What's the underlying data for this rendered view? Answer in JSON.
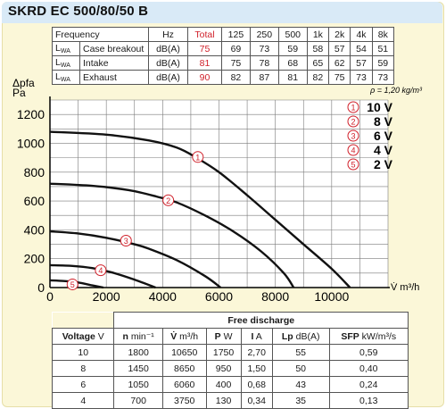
{
  "title": "SKRD EC 500/80/50 B",
  "sound_table": {
    "freq_label": "Frequency",
    "hz_label": "Hz",
    "total_label": "Total",
    "bands": [
      "125",
      "250",
      "500",
      "1k",
      "2k",
      "4k",
      "8k"
    ],
    "rows": [
      {
        "lwa": "L",
        "lwa_sub": "WA",
        "desc": "Case breakout",
        "unit": "dB(A)",
        "total": "75",
        "values": [
          "69",
          "73",
          "59",
          "58",
          "57",
          "54",
          "51"
        ]
      },
      {
        "lwa": "L",
        "lwa_sub": "WA",
        "desc": "Intake",
        "unit": "dB(A)",
        "total": "81",
        "values": [
          "75",
          "78",
          "68",
          "65",
          "62",
          "57",
          "59"
        ]
      },
      {
        "lwa": "L",
        "lwa_sub": "WA",
        "desc": "Exhaust",
        "unit": "dB(A)",
        "total": "90",
        "values": [
          "82",
          "87",
          "81",
          "82",
          "75",
          "73",
          "73"
        ]
      }
    ]
  },
  "chart_data": {
    "type": "line",
    "ylabel_line1": "Δpfa",
    "ylabel_line2": "Pa",
    "xlabel": "V̇ m³/h",
    "density_note": "ρ = 1,20 kg/m³",
    "x_ticks": [
      "0",
      "2000",
      "4000",
      "6000",
      "8000",
      "10000"
    ],
    "y_ticks": [
      "0",
      "200",
      "400",
      "600",
      "800",
      "1000",
      "1200"
    ],
    "xlim": [
      0,
      12000
    ],
    "ylim": [
      0,
      1300
    ],
    "grid": true,
    "legend_position": "top-right",
    "series": [
      {
        "name": "10 V",
        "marker": "1",
        "points": [
          [
            0,
            1080
          ],
          [
            2000,
            1060
          ],
          [
            3500,
            1020
          ],
          [
            4500,
            970
          ],
          [
            5200,
            900
          ],
          [
            6000,
            800
          ],
          [
            7000,
            640
          ],
          [
            8000,
            470
          ],
          [
            9000,
            300
          ],
          [
            10000,
            130
          ],
          [
            10650,
            0
          ]
        ]
      },
      {
        "name": "8 V",
        "marker": "2",
        "points": [
          [
            0,
            720
          ],
          [
            1500,
            705
          ],
          [
            2800,
            675
          ],
          [
            3800,
            630
          ],
          [
            4500,
            590
          ],
          [
            5500,
            500
          ],
          [
            6500,
            390
          ],
          [
            7500,
            250
          ],
          [
            8300,
            100
          ],
          [
            8650,
            0
          ]
        ]
      },
      {
        "name": "6 V",
        "marker": "3",
        "points": [
          [
            0,
            390
          ],
          [
            1000,
            375
          ],
          [
            2000,
            345
          ],
          [
            3000,
            300
          ],
          [
            3500,
            270
          ],
          [
            4500,
            190
          ],
          [
            5500,
            80
          ],
          [
            6060,
            0
          ]
        ]
      },
      {
        "name": "4 V",
        "marker": "4",
        "points": [
          [
            0,
            155
          ],
          [
            800,
            150
          ],
          [
            1500,
            135
          ],
          [
            2200,
            105
          ],
          [
            3000,
            55
          ],
          [
            3750,
            0
          ]
        ]
      },
      {
        "name": "2 V",
        "marker": "5",
        "points": [
          [
            0,
            50
          ],
          [
            500,
            45
          ],
          [
            1000,
            35
          ],
          [
            1500,
            15
          ],
          [
            1900,
            0
          ]
        ]
      }
    ],
    "marker_positions": [
      [
        5250,
        905
      ],
      [
        4200,
        605
      ],
      [
        2700,
        325
      ],
      [
        1800,
        120
      ],
      [
        800,
        22
      ]
    ]
  },
  "discharge_table": {
    "header": "Free discharge",
    "columns": [
      {
        "bold": "Voltage",
        "unit": " V"
      },
      {
        "bold": "n",
        "unit": " min⁻¹"
      },
      {
        "bold": "V̇",
        "unit": " m³/h"
      },
      {
        "bold": "P",
        "unit": " W"
      },
      {
        "bold": "I",
        "unit": " A"
      },
      {
        "bold": "Lp",
        "unit": " dB(A)"
      },
      {
        "bold": "SFP",
        "unit": " kW/m³/s"
      }
    ],
    "rows": [
      [
        "10",
        "1800",
        "10650",
        "1750",
        "2,70",
        "55",
        "0,59"
      ],
      [
        "8",
        "1450",
        "8650",
        "950",
        "1,50",
        "50",
        "0,40"
      ],
      [
        "6",
        "1050",
        "6060",
        "400",
        "0,68",
        "43",
        "0,24"
      ],
      [
        "4",
        "700",
        "3750",
        "130",
        "0,34",
        "35",
        "0,13"
      ]
    ]
  },
  "colors": {
    "background": "#fbf7d8",
    "title_bar": "#d9eaf7",
    "highlight": "#d0202a",
    "curve": "#111111",
    "grid": "#7a7a7a"
  }
}
